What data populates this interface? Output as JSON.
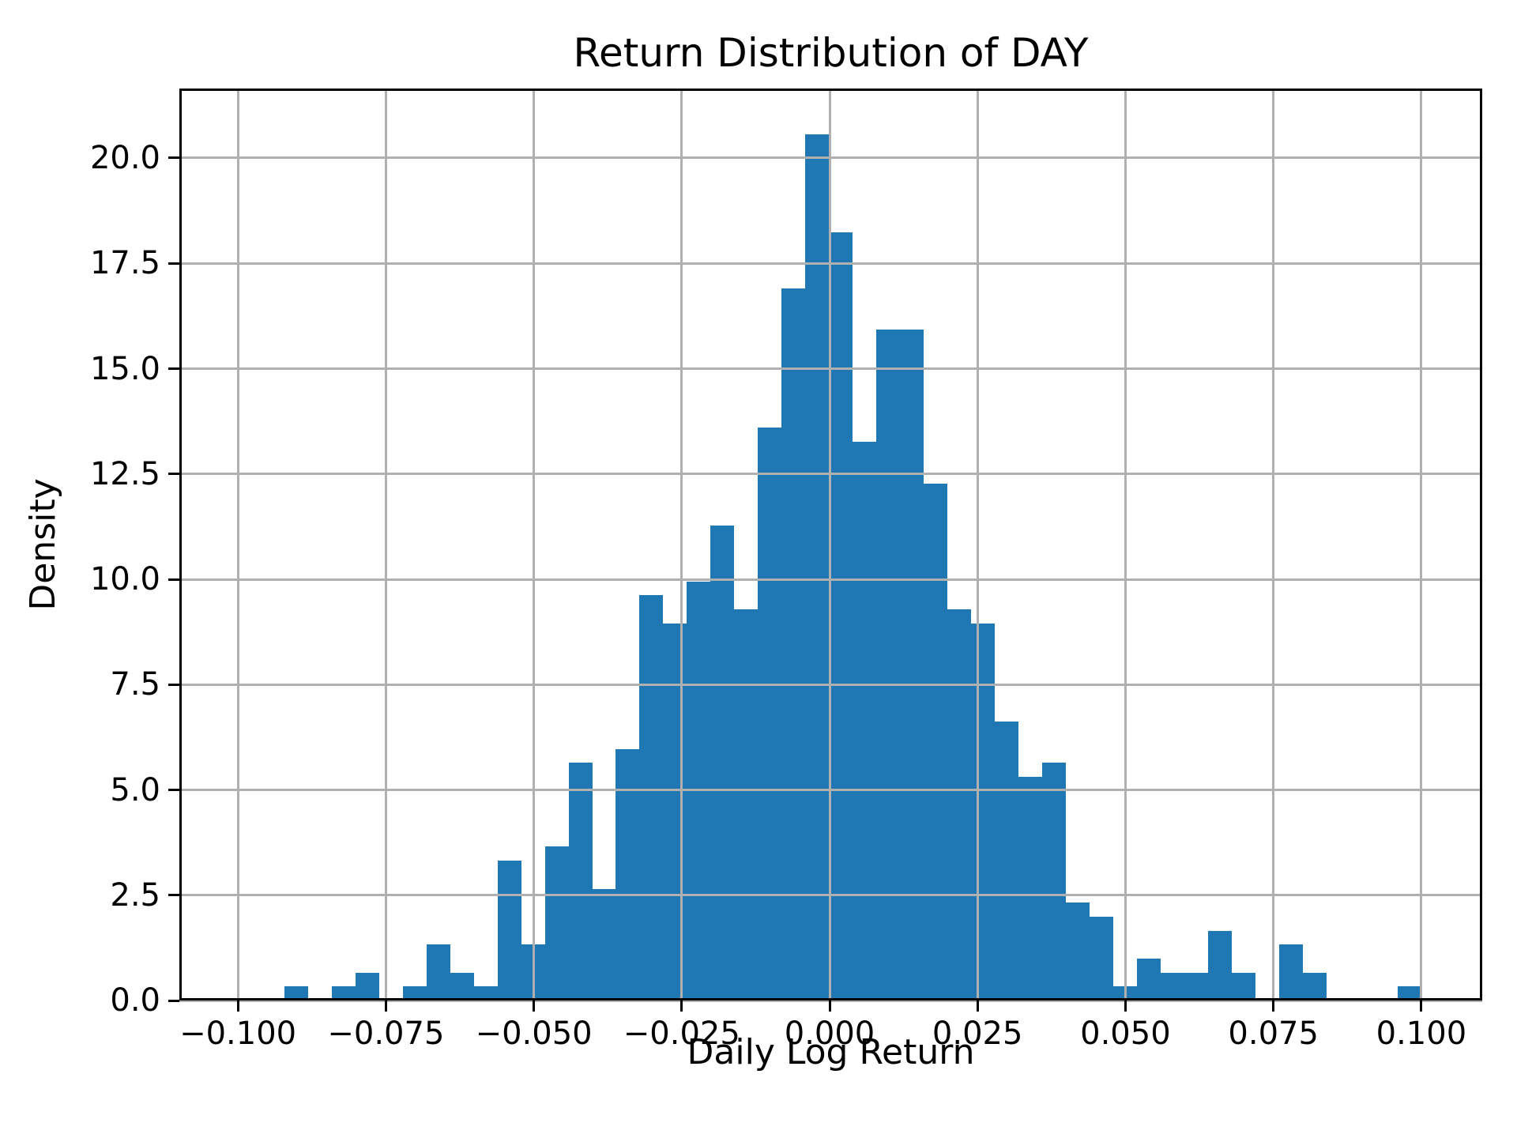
{
  "chart_data": {
    "type": "bar",
    "chart_kind": "histogram",
    "title": "Return Distribution of DAY",
    "xlabel": "Daily Log Return",
    "ylabel": "Density",
    "bar_color": "#1f77b4",
    "grid_color": "#b0b0b0",
    "axis_color": "#000000",
    "grid": "on",
    "legend_position": "none",
    "xlim": [
      -0.1099,
      0.1103
    ],
    "ylim": [
      0,
      21.65
    ],
    "x_ticks": [
      -0.1,
      -0.075,
      -0.05,
      -0.025,
      0.0,
      0.025,
      0.05,
      0.075,
      0.1
    ],
    "x_tick_labels": [
      "−0.100",
      "−0.075",
      "−0.050",
      "−0.025",
      "0.000",
      "0.025",
      "0.050",
      "0.075",
      "0.100"
    ],
    "y_ticks": [
      0.0,
      2.5,
      5.0,
      7.5,
      10.0,
      12.5,
      15.0,
      17.5,
      20.0
    ],
    "y_tick_labels": [
      "0.0",
      "2.5",
      "5.0",
      "7.5",
      "10.0",
      "12.5",
      "15.0",
      "17.5",
      "20.0"
    ],
    "bins": {
      "start": -0.0922,
      "width": 0.004005,
      "count": 48
    },
    "densities": [
      0.33,
      0,
      0.33,
      0.66,
      0,
      0.33,
      1.33,
      0.66,
      0.33,
      3.32,
      1.33,
      3.65,
      5.64,
      2.65,
      5.97,
      9.62,
      8.95,
      9.95,
      11.27,
      9.28,
      13.6,
      16.91,
      20.56,
      18.24,
      13.26,
      15.92,
      15.92,
      12.27,
      9.28,
      8.95,
      6.63,
      5.31,
      5.64,
      2.32,
      1.99,
      0.33,
      0.99,
      0.66,
      0.66,
      1.66,
      0.66,
      0,
      1.33,
      0.66,
      0,
      0,
      0,
      0.33
    ]
  }
}
